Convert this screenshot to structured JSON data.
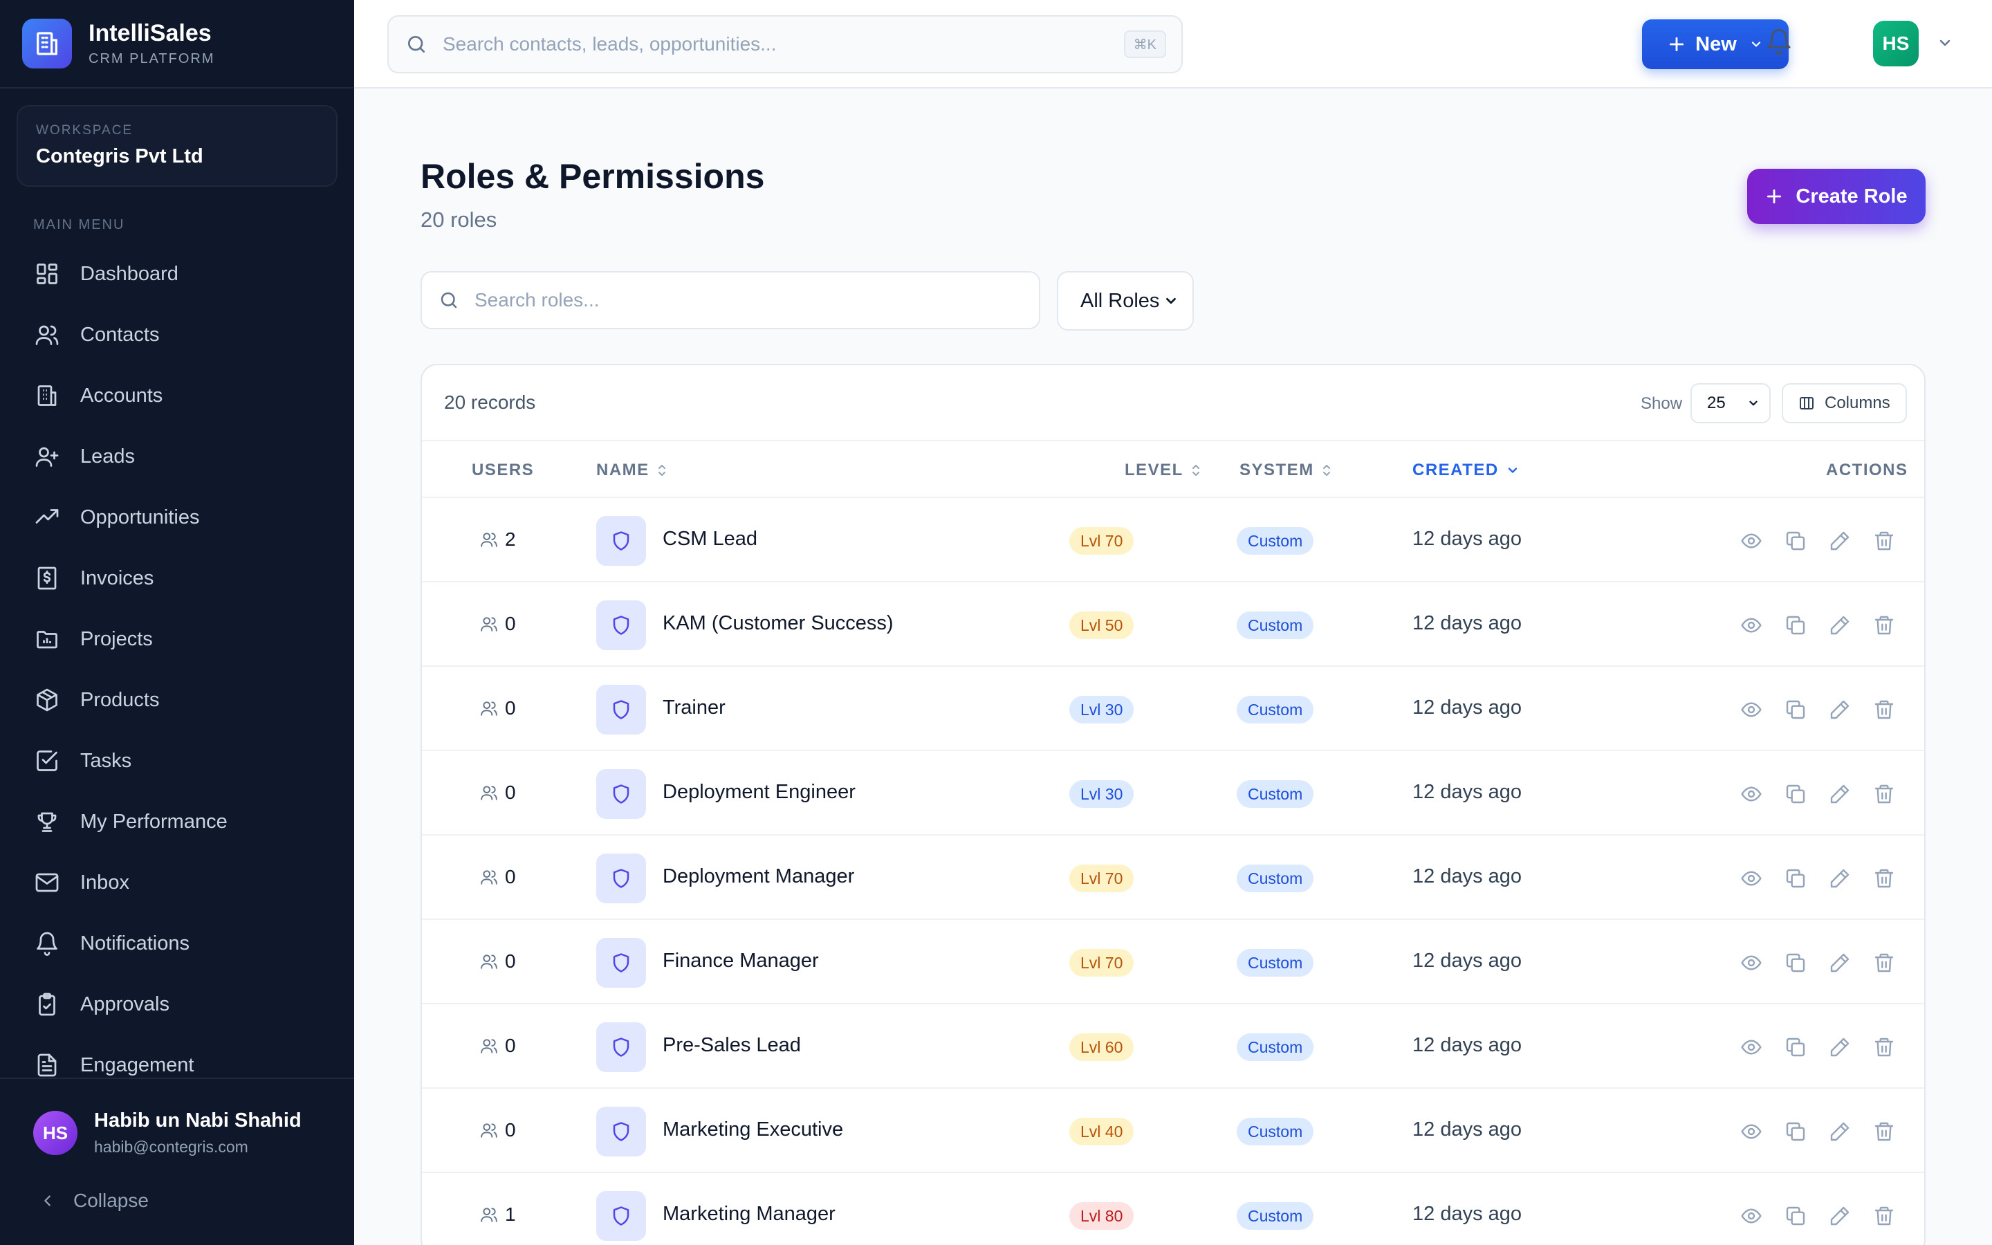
{
  "brand": {
    "name": "IntelliSales",
    "subtitle": "CRM PLATFORM"
  },
  "workspace": {
    "label": "WORKSPACE",
    "name": "Contegris Pvt Ltd"
  },
  "sidebar": {
    "menu_title": "MAIN MENU",
    "items": [
      {
        "label": "Dashboard",
        "icon": "grid-icon"
      },
      {
        "label": "Contacts",
        "icon": "users-icon"
      },
      {
        "label": "Accounts",
        "icon": "building-icon"
      },
      {
        "label": "Leads",
        "icon": "user-plus-icon"
      },
      {
        "label": "Opportunities",
        "icon": "trending-up-icon"
      },
      {
        "label": "Invoices",
        "icon": "receipt-dollar-icon"
      },
      {
        "label": "Projects",
        "icon": "folder-chart-icon"
      },
      {
        "label": "Products",
        "icon": "box-icon"
      },
      {
        "label": "Tasks",
        "icon": "check-square-icon"
      },
      {
        "label": "My Performance",
        "icon": "trophy-icon"
      },
      {
        "label": "Inbox",
        "icon": "mail-icon"
      },
      {
        "label": "Notifications",
        "icon": "bell-icon"
      },
      {
        "label": "Approvals",
        "icon": "clipboard-check-icon"
      },
      {
        "label": "Engagement",
        "icon": "file-text-icon"
      }
    ],
    "user": {
      "initials": "HS",
      "name": "Habib un Nabi Shahid",
      "email": "habib@contegris.com"
    },
    "collapse_label": "Collapse"
  },
  "topbar": {
    "search_placeholder": "Search contacts, leads, opportunities...",
    "shortcut": "⌘K",
    "new_label": "New",
    "avatar_initials": "HS"
  },
  "page": {
    "title": "Roles & Permissions",
    "subtitle": "20 roles",
    "create_label": "Create Role",
    "search_placeholder": "Search roles...",
    "filter_value": "All Roles"
  },
  "table": {
    "records_label": "20 records",
    "show_label": "Show",
    "page_size": "25",
    "columns_label": "Columns",
    "headers": {
      "users": "USERS",
      "name": "NAME",
      "level": "LEVEL",
      "system": "SYSTEM",
      "created": "CREATED",
      "actions": "ACTIONS"
    },
    "rows": [
      {
        "users": "2",
        "name": "CSM Lead",
        "level": "Lvl 70",
        "level_tone": "orange",
        "system": "Custom",
        "created": "12 days ago"
      },
      {
        "users": "0",
        "name": "KAM (Customer Success)",
        "level": "Lvl 50",
        "level_tone": "orange",
        "system": "Custom",
        "created": "12 days ago"
      },
      {
        "users": "0",
        "name": "Trainer",
        "level": "Lvl 30",
        "level_tone": "blue",
        "system": "Custom",
        "created": "12 days ago"
      },
      {
        "users": "0",
        "name": "Deployment Engineer",
        "level": "Lvl 30",
        "level_tone": "blue",
        "system": "Custom",
        "created": "12 days ago"
      },
      {
        "users": "0",
        "name": "Deployment Manager",
        "level": "Lvl 70",
        "level_tone": "orange",
        "system": "Custom",
        "created": "12 days ago"
      },
      {
        "users": "0",
        "name": "Finance Manager",
        "level": "Lvl 70",
        "level_tone": "orange",
        "system": "Custom",
        "created": "12 days ago"
      },
      {
        "users": "0",
        "name": "Pre-Sales Lead",
        "level": "Lvl 60",
        "level_tone": "orange",
        "system": "Custom",
        "created": "12 days ago"
      },
      {
        "users": "0",
        "name": "Marketing Executive",
        "level": "Lvl 40",
        "level_tone": "orange",
        "system": "Custom",
        "created": "12 days ago"
      },
      {
        "users": "1",
        "name": "Marketing Manager",
        "level": "Lvl 80",
        "level_tone": "red",
        "system": "Custom",
        "created": "12 days ago"
      }
    ]
  },
  "colors": {
    "sidebar_bg": "#0f172a",
    "primary": "#2563eb",
    "accent_purple": "#7e22ce",
    "avatar_green": "#10b981"
  }
}
